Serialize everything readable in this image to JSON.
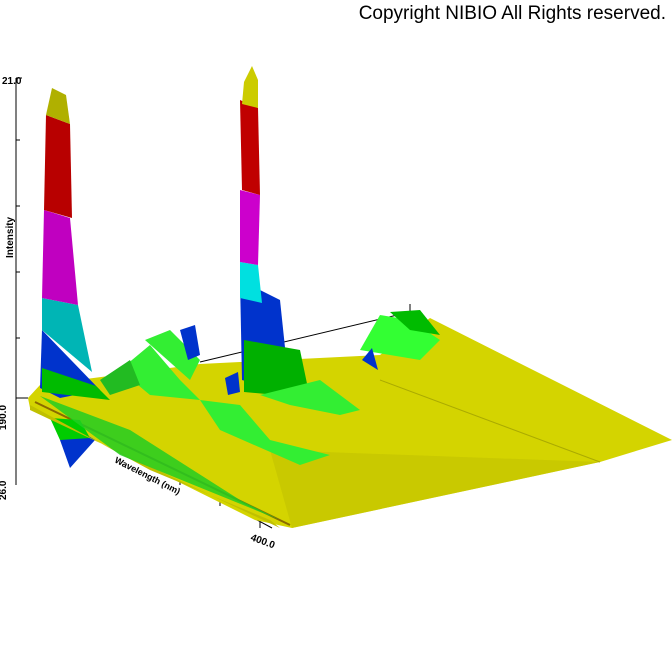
{
  "copyright": "Copyright NIBIO All Rights reserved.",
  "chart_data": {
    "type": "surface-3d",
    "intensity_axis": {
      "label": "Intensity",
      "tick_max_label": "21.0"
    },
    "wavelength_axis": {
      "label": "Wavelength (nm)",
      "start_label": "190.0",
      "end_label": "400.0",
      "range": [
        190,
        400
      ]
    },
    "time_axis": {
      "start_label": "190.0",
      "end_label": "26.0"
    },
    "band_colors": [
      "#0033cc",
      "#00cc00",
      "#00e5e5",
      "#cc00cc",
      "#cc0000",
      "#c8c800",
      "#33ff33",
      "#d4d400"
    ]
  }
}
